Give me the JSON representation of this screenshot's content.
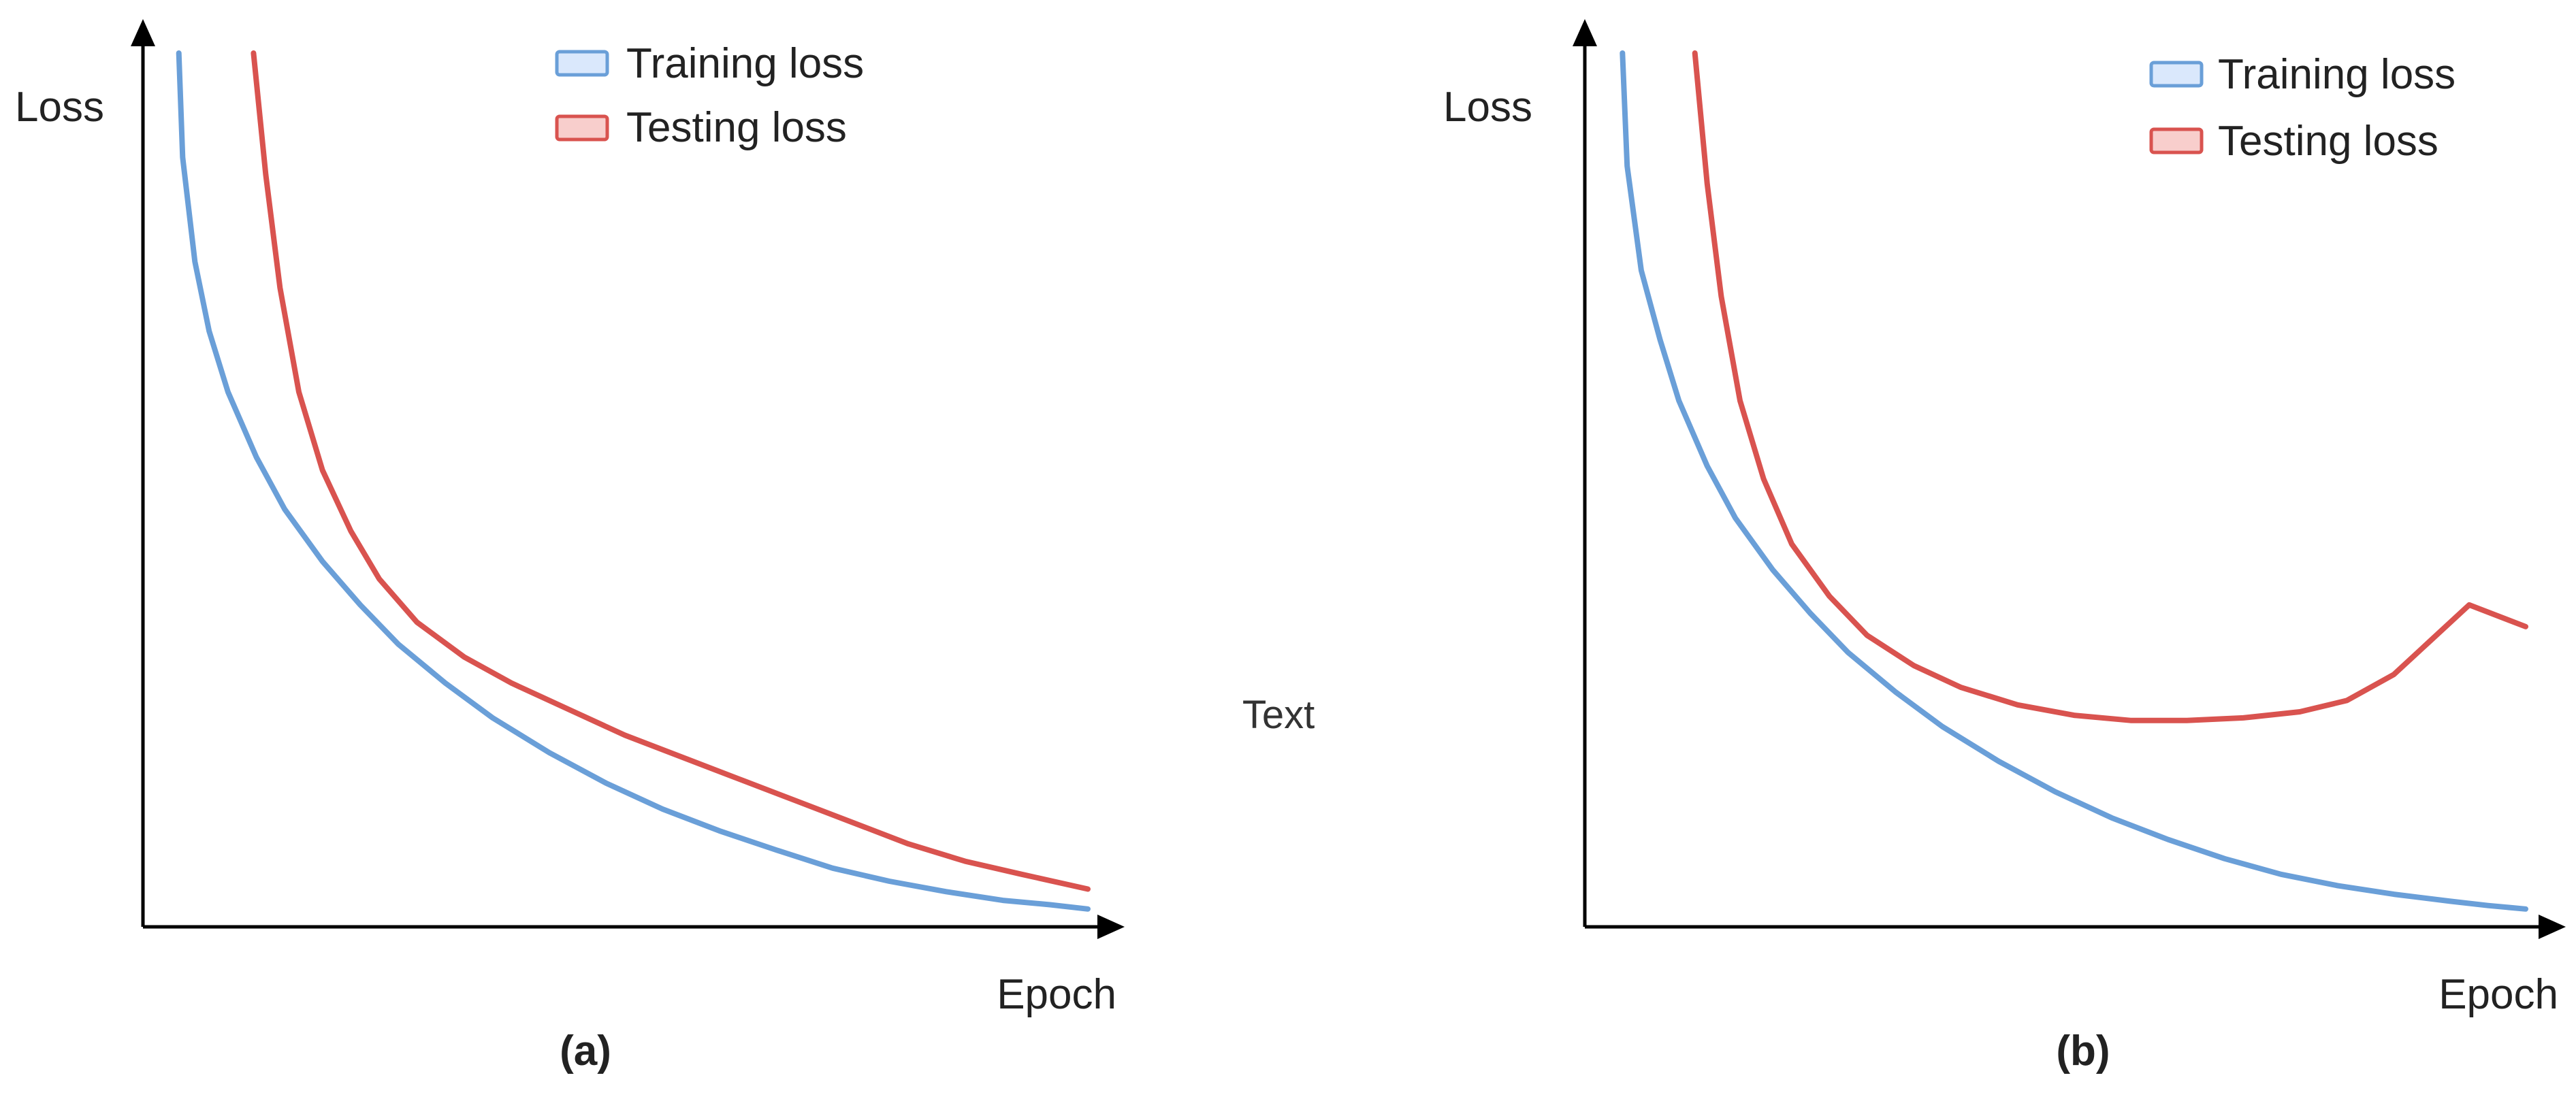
{
  "figure": {
    "stray_text": "Text"
  },
  "chart_data": [
    {
      "type": "line",
      "panel_label": "(a)",
      "xlabel": "Epoch",
      "ylabel": "Loss",
      "xlim": [
        0,
        10
      ],
      "ylim": [
        0,
        10
      ],
      "grid": false,
      "legend_position": "top-center",
      "series": [
        {
          "name": "Training loss",
          "color": "#6a9fd8",
          "legend_fill": "#dae8fc",
          "x": [
            0.38,
            0.42,
            0.55,
            0.7,
            0.9,
            1.2,
            1.5,
            1.9,
            2.3,
            2.7,
            3.2,
            3.7,
            4.3,
            4.9,
            5.5,
            6.1,
            6.7,
            7.3,
            7.9,
            8.5,
            9.1,
            9.6,
            10.0
          ],
          "y": [
            10.0,
            8.8,
            7.6,
            6.8,
            6.1,
            5.35,
            4.75,
            4.15,
            3.65,
            3.2,
            2.75,
            2.35,
            1.95,
            1.6,
            1.3,
            1.05,
            0.83,
            0.62,
            0.47,
            0.35,
            0.25,
            0.2,
            0.15
          ]
        },
        {
          "name": "Testing loss",
          "color": "#d9534f",
          "legend_fill": "#f8cecc",
          "x": [
            1.17,
            1.3,
            1.45,
            1.65,
            1.9,
            2.2,
            2.5,
            2.9,
            3.4,
            3.9,
            4.5,
            5.1,
            5.7,
            6.3,
            6.9,
            7.5,
            8.1,
            8.7,
            9.3,
            10.0
          ],
          "y": [
            10.0,
            8.6,
            7.3,
            6.1,
            5.2,
            4.5,
            3.95,
            3.45,
            3.05,
            2.75,
            2.45,
            2.15,
            1.9,
            1.65,
            1.4,
            1.15,
            0.9,
            0.7,
            0.55,
            0.38
          ]
        }
      ]
    },
    {
      "type": "line",
      "panel_label": "(b)",
      "xlabel": "Epoch",
      "ylabel": "Loss",
      "xlim": [
        0,
        10
      ],
      "ylim": [
        0,
        10
      ],
      "grid": false,
      "legend_position": "top-right",
      "series": [
        {
          "name": "Training loss",
          "color": "#6a9fd8",
          "legend_fill": "#dae8fc",
          "x": [
            0.4,
            0.45,
            0.6,
            0.8,
            1.0,
            1.3,
            1.6,
            2.0,
            2.4,
            2.8,
            3.3,
            3.8,
            4.4,
            5.0,
            5.6,
            6.2,
            6.8,
            7.4,
            8.0,
            8.6,
            9.2,
            9.6,
            10.0
          ],
          "y": [
            10.0,
            8.7,
            7.5,
            6.7,
            6.0,
            5.25,
            4.65,
            4.05,
            3.55,
            3.1,
            2.65,
            2.25,
            1.85,
            1.5,
            1.2,
            0.95,
            0.73,
            0.55,
            0.42,
            0.32,
            0.24,
            0.19,
            0.15
          ]
        },
        {
          "name": "Testing loss",
          "color": "#d9534f",
          "legend_fill": "#f8cecc",
          "x": [
            1.17,
            1.3,
            1.45,
            1.65,
            1.9,
            2.2,
            2.6,
            3.0,
            3.5,
            4.0,
            4.6,
            5.2,
            5.8,
            6.4,
            7.0,
            7.6,
            8.1,
            8.6,
            9.0,
            9.4,
            10.0
          ],
          "y": [
            10.0,
            8.5,
            7.2,
            6.0,
            5.1,
            4.35,
            3.75,
            3.3,
            2.95,
            2.7,
            2.5,
            2.38,
            2.32,
            2.32,
            2.35,
            2.42,
            2.55,
            2.85,
            3.25,
            3.65,
            3.4
          ]
        }
      ]
    }
  ]
}
